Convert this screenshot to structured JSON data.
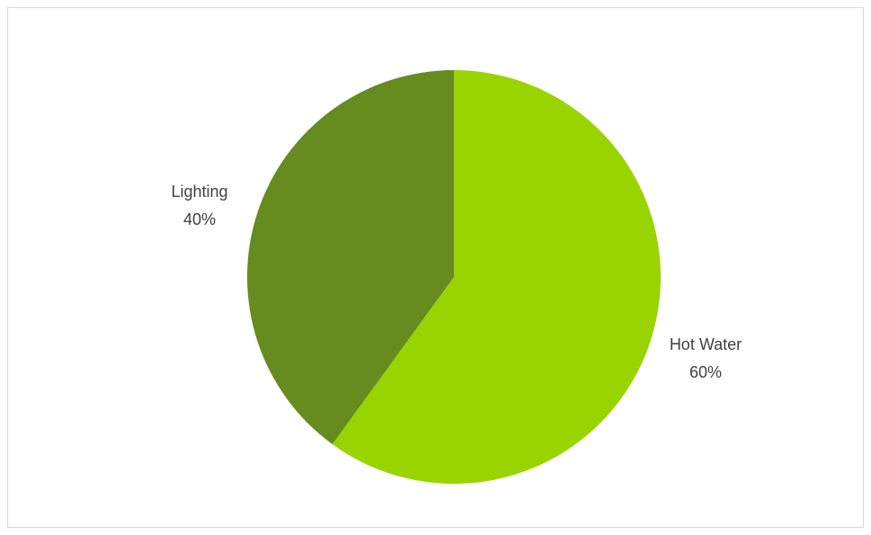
{
  "chart_data": {
    "type": "pie",
    "title": "",
    "start_angle_deg": 0,
    "direction": "clockwise",
    "legend": "none",
    "slices": [
      {
        "label": "Hot Water",
        "value": 60,
        "value_label": "60%",
        "color": "#99d400"
      },
      {
        "label": "Lighting",
        "value": 40,
        "value_label": "40%",
        "color": "#668b1e"
      }
    ]
  }
}
